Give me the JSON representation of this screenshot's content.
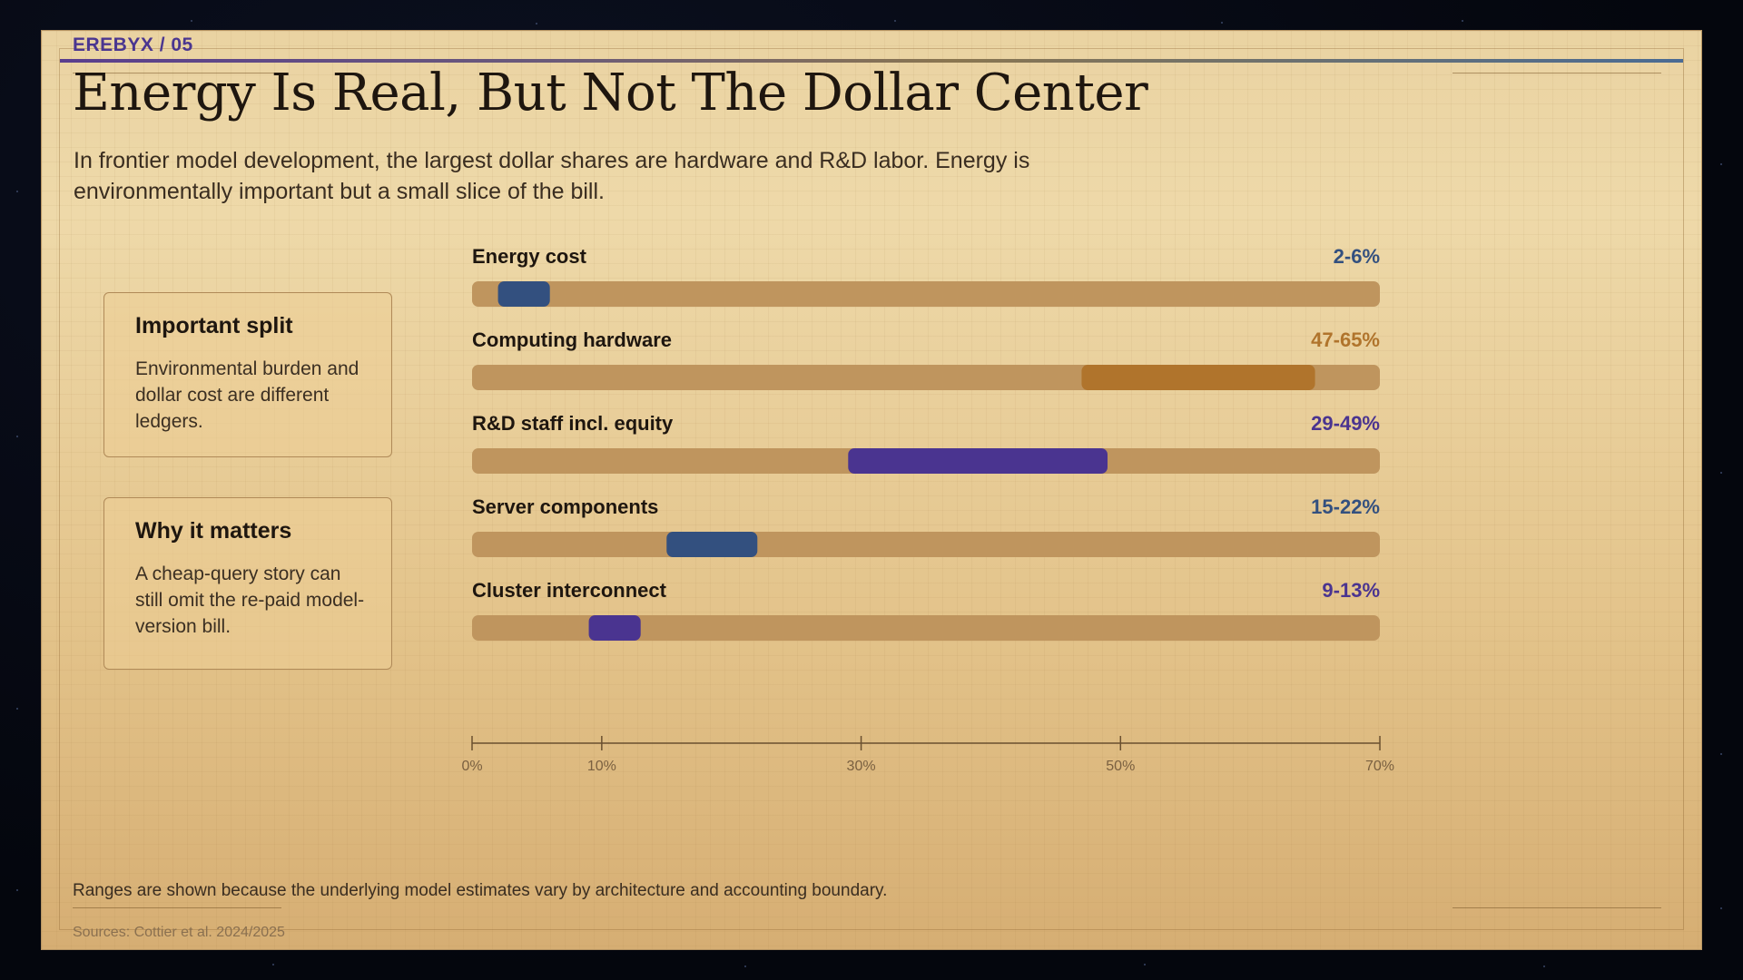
{
  "slide": {
    "kicker": "EREBYX / 05",
    "title": "Energy Is Real, But Not The Dollar Center",
    "subtitle": "In frontier model development, the largest dollar shares are hardware and R&D labor. Energy is environmentally important but a small slice of the bill.",
    "footer_note": "Ranges are shown because the underlying model estimates vary by architecture and accounting boundary.",
    "sources": "Sources: Cottier et al. 2024/2025"
  },
  "cards": [
    {
      "title": "Important split",
      "body": "Environmental burden and dollar cost are different ledgers."
    },
    {
      "title": "Why it matters",
      "body": "A cheap-query story can still omit the re-paid model-version bill."
    }
  ],
  "chart_data": {
    "type": "bar",
    "orientation": "horizontal-range",
    "categories": [
      "Energy cost",
      "Computing hardware",
      "R&D staff incl. equity",
      "Server components",
      "Cluster interconnect"
    ],
    "series": [
      {
        "ranges": [
          [
            2,
            6
          ],
          [
            47,
            65
          ],
          [
            29,
            49
          ],
          [
            15,
            22
          ],
          [
            9,
            13
          ]
        ],
        "range_labels": [
          "2-6%",
          "47-65%",
          "29-49%",
          "15-22%",
          "9-13%"
        ],
        "colors": [
          "#33507f",
          "#b0742c",
          "#4a3490",
          "#33507f",
          "#4a3490"
        ]
      }
    ],
    "xlim": [
      0,
      70
    ],
    "ticks": [
      0,
      10,
      30,
      50,
      70
    ],
    "tick_labels": [
      "0%",
      "10%",
      "30%",
      "50%",
      "70%"
    ],
    "track_color": "#bf955e",
    "axis_color": "#6a5030",
    "grid": false
  }
}
